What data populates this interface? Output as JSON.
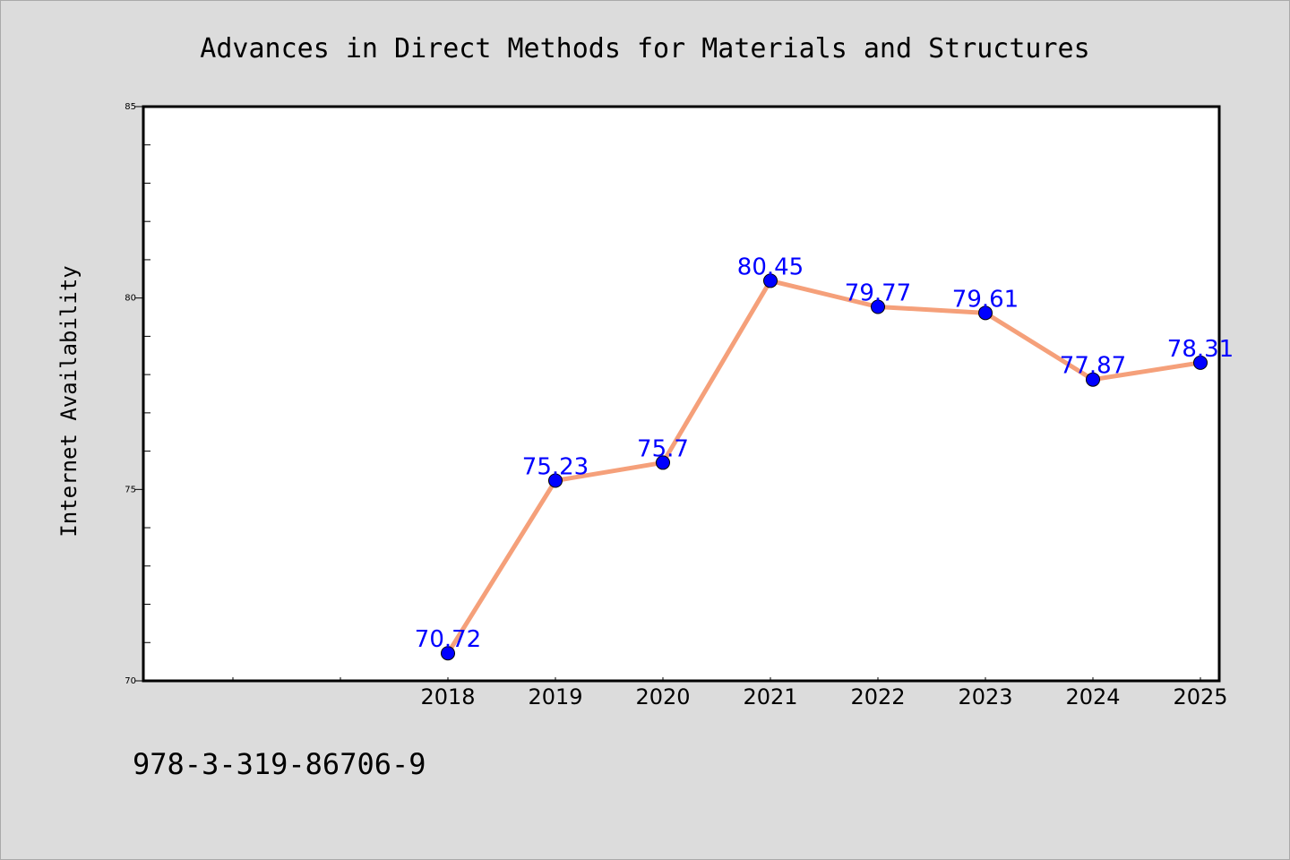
{
  "colors": {
    "background": "#dcdcdc",
    "plot_background": "#ffffff",
    "line": "#f5a07a",
    "marker": "#0000ff",
    "data_label": "#0000ff"
  },
  "chart_data": {
    "type": "line",
    "title": "Advances in Direct Methods for Materials and Structures",
    "xlabel": "",
    "ylabel": "Internet Availability",
    "categories": [
      "",
      "",
      "2018",
      "2019",
      "2020",
      "2021",
      "2022",
      "2023",
      "2024",
      "2025"
    ],
    "series": [
      {
        "values": [
          null,
          null,
          70.72,
          75.23,
          75.7,
          80.45,
          79.77,
          79.61,
          77.87,
          78.31
        ],
        "labels": [
          "",
          "",
          "70.72",
          "75.23",
          "75.7",
          "80.45",
          "79.77",
          "79.61",
          "77.87",
          "78.31"
        ]
      }
    ],
    "ylim": [
      70,
      85
    ],
    "yticks": [
      "70",
      "75",
      "80",
      "85"
    ],
    "grid": false,
    "legend": "none"
  },
  "footer": {
    "isbn": "978-3-319-86706-9"
  }
}
